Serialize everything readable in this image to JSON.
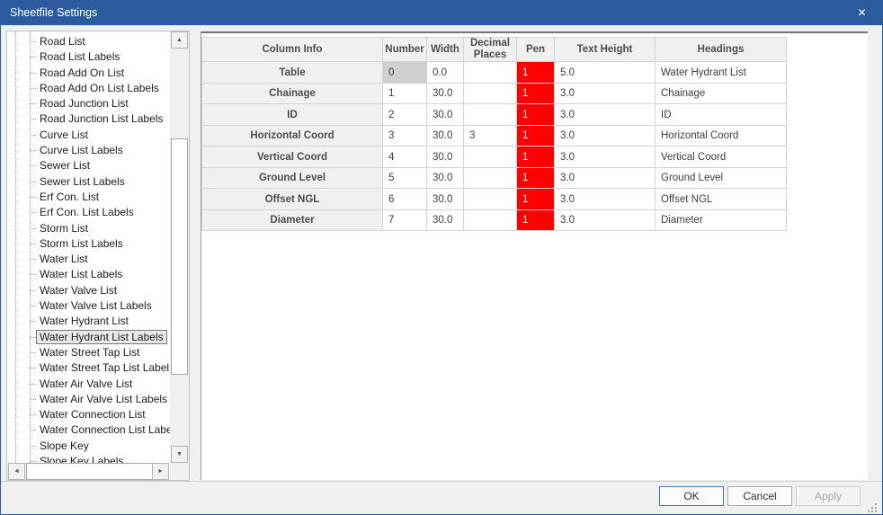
{
  "window": {
    "title": "Sheetfile Settings"
  },
  "icons": {
    "close": "✕",
    "arrow_up": "▲",
    "arrow_down": "▼",
    "arrow_left": "◄",
    "arrow_right": "►"
  },
  "sidebar": {
    "selected_item": "Water Hydrant List Labels",
    "items": [
      "Road List",
      "Road List Labels",
      "Road Add On List",
      "Road Add On List Labels",
      "Road Junction List",
      "Road Junction List Labels",
      "Curve List",
      "Curve List Labels",
      "Sewer List",
      "Sewer List Labels",
      "Erf Con. List",
      "Erf Con. List Labels",
      "Storm List",
      "Storm List Labels",
      "Water List",
      "Water List Labels",
      "Water Valve List",
      "Water Valve List Labels",
      "Water Hydrant List",
      "Water Hydrant List Labels",
      "Water Street Tap List",
      "Water Street Tap List Labels",
      "Water Air Valve List",
      "Water Air Valve List Labels",
      "Water Connection List",
      "Water Connection List Labels",
      "Slope Key",
      "Slope Key Labels"
    ]
  },
  "grid": {
    "columns": [
      "Column Info",
      "Number",
      "Width",
      "Decimal Places",
      "Pen",
      "Text Height",
      "Headings"
    ],
    "rows": [
      {
        "column_info": "Table",
        "number": "0",
        "number_selected": true,
        "width": "0.0",
        "decimal_places": "",
        "pen": "1",
        "text_height": "5.0",
        "headings": "Water Hydrant List"
      },
      {
        "column_info": "Chainage",
        "number": "1",
        "number_selected": false,
        "width": "30.0",
        "decimal_places": "",
        "pen": "1",
        "text_height": "3.0",
        "headings": "Chainage"
      },
      {
        "column_info": "ID",
        "number": "2",
        "number_selected": false,
        "width": "30.0",
        "decimal_places": "",
        "pen": "1",
        "text_height": "3.0",
        "headings": "ID"
      },
      {
        "column_info": "Horizontal Coord",
        "number": "3",
        "number_selected": false,
        "width": "30.0",
        "decimal_places": "3",
        "pen": "1",
        "text_height": "3.0",
        "headings": "Horizontal Coord"
      },
      {
        "column_info": "Vertical Coord",
        "number": "4",
        "number_selected": false,
        "width": "30.0",
        "decimal_places": "",
        "pen": "1",
        "text_height": "3.0",
        "headings": "Vertical Coord"
      },
      {
        "column_info": "Ground Level",
        "number": "5",
        "number_selected": false,
        "width": "30.0",
        "decimal_places": "",
        "pen": "1",
        "text_height": "3.0",
        "headings": "Ground Level"
      },
      {
        "column_info": "Offset NGL",
        "number": "6",
        "number_selected": false,
        "width": "30.0",
        "decimal_places": "",
        "pen": "1",
        "text_height": "3.0",
        "headings": "Offset NGL"
      },
      {
        "column_info": "Diameter",
        "number": "7",
        "number_selected": false,
        "width": "30.0",
        "decimal_places": "",
        "pen": "1",
        "text_height": "3.0",
        "headings": "Diameter"
      }
    ]
  },
  "footer": {
    "ok_label": "OK",
    "cancel_label": "Cancel",
    "apply_label": "Apply"
  },
  "colors": {
    "titlebar": "#2d5c9e",
    "pen_red": "#fe0000",
    "selected_cell": "#cfcfcf"
  }
}
